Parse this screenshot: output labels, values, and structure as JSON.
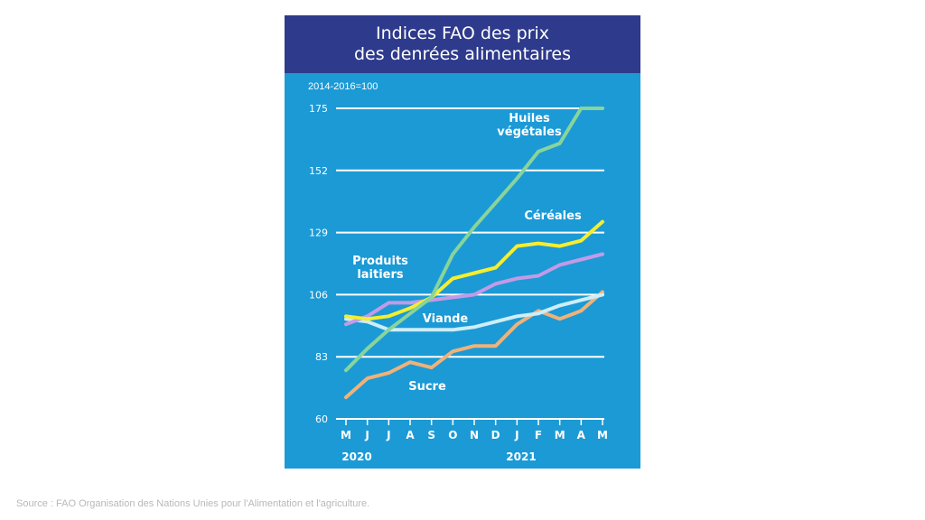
{
  "title_line1": "Indices FAO des prix",
  "title_line2": "des denrées alimentaires",
  "base_note": "2014-2016=100",
  "source": "Source : FAO Organisation des Nations Unies pour l'Alimentation et l'agriculture.",
  "colors": {
    "panel": "#1b9ad6",
    "title_bar": "#2e3a8c",
    "huiles": "#88d49a",
    "cereales": "#f5ee2f",
    "laitiers": "#c39ae6",
    "viande": "#cdeef8",
    "sucre": "#f0b278"
  },
  "chart_data": {
    "type": "line",
    "title": "Indices FAO des prix des denrées alimentaires",
    "ylabel": "2014-2016=100",
    "categories": [
      "M",
      "J",
      "J",
      "A",
      "S",
      "O",
      "N",
      "D",
      "J",
      "F",
      "M",
      "A",
      "M"
    ],
    "year_labels": [
      "2020",
      "2021"
    ],
    "ylim": [
      60,
      175
    ],
    "yticks": [
      60,
      83,
      106,
      129,
      152,
      175
    ],
    "grid": true,
    "series": [
      {
        "name": "Huiles végétales",
        "label_lines": [
          "Huiles",
          "végétales"
        ],
        "color_key": "huiles",
        "values": [
          78,
          86,
          93,
          99,
          105,
          121,
          131,
          140,
          149,
          159,
          162,
          175,
          175
        ]
      },
      {
        "name": "Céréales",
        "label_lines": [
          "Céréales"
        ],
        "color_key": "cereales",
        "values": [
          98,
          97,
          98,
          101,
          105,
          112,
          114,
          116,
          124,
          125,
          124,
          126,
          133
        ]
      },
      {
        "name": "Produits laitiers",
        "label_lines": [
          "Produits",
          "laitiers"
        ],
        "color_key": "laitiers",
        "values": [
          95,
          98,
          103,
          103,
          104,
          105,
          106,
          110,
          112,
          113,
          117,
          119,
          121
        ]
      },
      {
        "name": "Viande",
        "label_lines": [
          "Viande"
        ],
        "color_key": "viande",
        "values": [
          97,
          96,
          93,
          93,
          93,
          93,
          94,
          96,
          98,
          99,
          102,
          104,
          106
        ]
      },
      {
        "name": "Sucre",
        "label_lines": [
          "Sucre"
        ],
        "color_key": "sucre",
        "values": [
          68,
          75,
          77,
          81,
          79,
          85,
          87,
          87,
          95,
          100,
          97,
          100,
          107
        ]
      }
    ]
  }
}
